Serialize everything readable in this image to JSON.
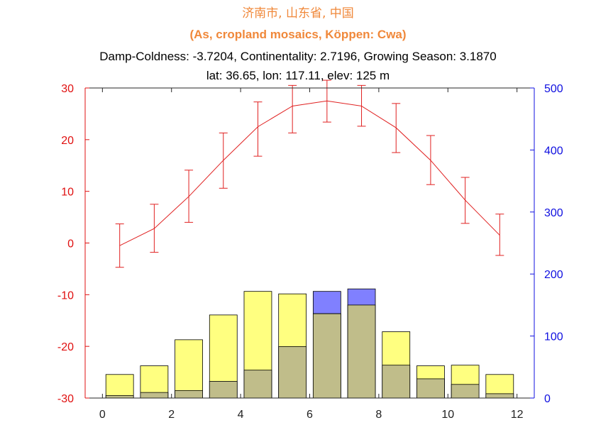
{
  "titles": {
    "line1": "济南市, 山东省, 中国",
    "line2": "(As, cropland mosaics, Köppen: Cwa)",
    "line3": "Damp-Coldness: -3.7204, Continentality: 2.7196, Growing Season: 3.1870",
    "line4": "lat: 36.65, lon: 117.11, elev: 125 m"
  },
  "colors": {
    "temperature": "#e02020",
    "left_axis": "#e01010",
    "right_axis": "#1010e0",
    "precip_bar": "#ffff80",
    "evap_bar": "#c0bd8a",
    "surplus_bar": "#8080ff",
    "axis": "#262626"
  },
  "chart_data": {
    "type": "bar+line",
    "x_ticks": [
      0,
      2,
      4,
      6,
      8,
      10,
      12
    ],
    "xlim": [
      -0.5,
      12.5
    ],
    "left_axis": {
      "ylim": [
        -30,
        30
      ],
      "ticks": [
        -30,
        -20,
        -10,
        0,
        10,
        20,
        30
      ]
    },
    "right_axis": {
      "ylim": [
        0,
        500
      ],
      "ticks": [
        0,
        100,
        200,
        300,
        400,
        500
      ]
    },
    "temperature": {
      "x": [
        0.5,
        1.5,
        2.5,
        3.5,
        4.5,
        5.5,
        6.5,
        7.5,
        8.5,
        9.5,
        10.5,
        11.5
      ],
      "mean": [
        -0.5,
        2.8,
        9.0,
        16.0,
        22.5,
        26.5,
        27.5,
        26.5,
        22.3,
        16.0,
        8.3,
        1.5
      ],
      "err_low": [
        -4.7,
        -1.8,
        4.0,
        10.6,
        16.8,
        21.3,
        23.4,
        22.6,
        17.5,
        11.3,
        3.8,
        -2.4
      ],
      "err_high": [
        3.7,
        7.5,
        14.1,
        21.3,
        27.3,
        30.5,
        31.5,
        30.5,
        27.0,
        20.8,
        12.7,
        5.6
      ]
    },
    "bars": {
      "x": [
        0.5,
        1.5,
        2.5,
        3.5,
        4.5,
        5.5,
        6.5,
        7.5,
        8.5,
        9.5,
        10.5,
        11.5
      ],
      "precipitation": [
        38,
        52,
        94,
        134,
        172,
        168,
        136,
        150,
        107,
        52,
        53,
        38
      ],
      "evapotranspiration": [
        4,
        9,
        12,
        27,
        45,
        83,
        136,
        150,
        53,
        31,
        22,
        7
      ],
      "surplus_top": [
        0,
        0,
        0,
        0,
        0,
        0,
        172,
        176,
        0,
        0,
        0,
        0
      ]
    }
  }
}
